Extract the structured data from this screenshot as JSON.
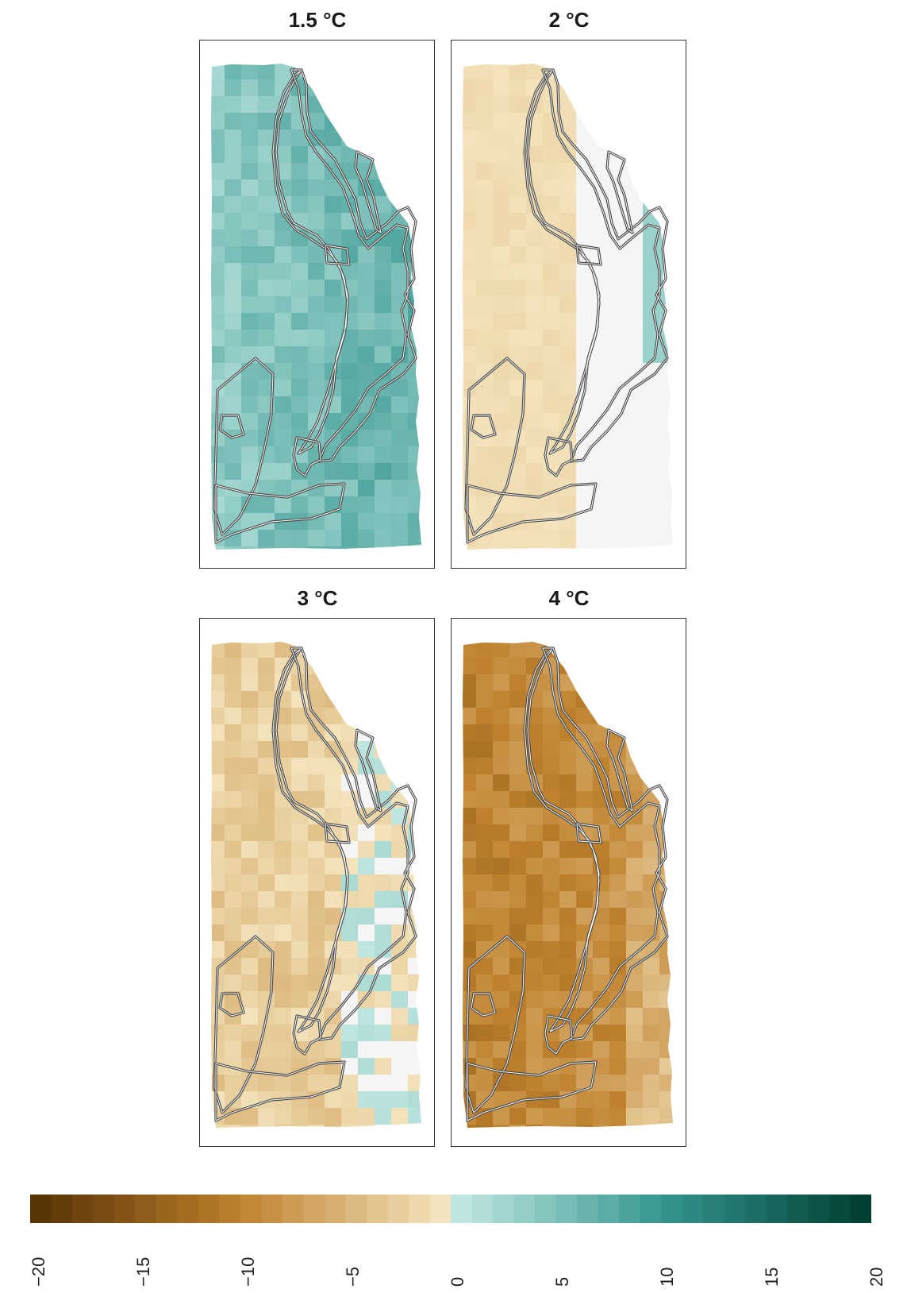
{
  "panels": [
    {
      "id": "p15",
      "title": "1.5 °C",
      "value": 5
    },
    {
      "id": "p2",
      "title": "2 °C",
      "value": 0
    },
    {
      "id": "p3",
      "title": "3 °C",
      "value": -2
    },
    {
      "id": "p4",
      "title": "4 °C",
      "value": -8
    }
  ],
  "legend": {
    "min": -20,
    "max": 20,
    "ticks": [
      "−20",
      "−15",
      "−10",
      "−5",
      "0",
      "5",
      "10",
      "15",
      "20"
    ],
    "colors": {
      "dry_dark": "#543005",
      "dry_mid": "#bf812d",
      "dry_light": "#f6e8c3",
      "neutral": "#f5f5f5",
      "wet_light": "#c7eae5",
      "wet_mid": "#35978f",
      "wet_dark": "#003c30"
    }
  }
}
